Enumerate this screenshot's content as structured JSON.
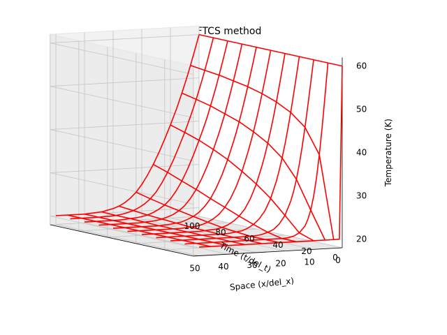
{
  "chart_data": {
    "type": "wireframe",
    "title": "FTCS method",
    "xlabel": "Space (x/del_x)",
    "ylabel": "Time (t/del_t)",
    "zlabel": "Temperature (K)",
    "x_ticks": [
      "0",
      "10",
      "20",
      "30",
      "40",
      "50"
    ],
    "y_ticks": [
      "0",
      "20",
      "40",
      "60",
      "80",
      "100"
    ],
    "z_ticks": [
      "20",
      "30",
      "40",
      "50",
      "60"
    ],
    "xlim": [
      0,
      52
    ],
    "ylim": [
      0,
      100
    ],
    "zlim": [
      18,
      62
    ],
    "grid": true,
    "line_color": "#ff0000",
    "x_points": [
      0,
      1,
      2,
      3,
      4,
      5,
      6,
      7,
      8,
      10,
      12,
      14,
      16,
      18,
      20,
      22,
      24,
      26,
      28,
      30,
      32,
      34,
      36,
      38,
      40,
      42,
      44,
      46,
      48,
      50
    ],
    "time_rows": [
      0,
      10,
      20,
      30,
      40,
      50,
      60,
      70,
      80,
      90,
      100
    ],
    "series": [
      {
        "time": 0,
        "temperature": [
          60,
          20,
          20,
          20,
          20,
          20,
          20,
          20,
          20,
          20,
          20,
          20,
          20,
          20,
          20,
          20,
          20,
          20,
          20,
          20,
          20,
          20,
          20,
          20,
          20,
          20,
          20,
          20,
          20,
          20
        ]
      },
      {
        "time": 10,
        "temperature": [
          60,
          52.5,
          45.3,
          38.9,
          33.5,
          29.3,
          26.2,
          24.1,
          22.6,
          21.1,
          20.4,
          20.1,
          20,
          20,
          20,
          20,
          20,
          20,
          20,
          20,
          20,
          20,
          20,
          20,
          20,
          20,
          20,
          20,
          20,
          20
        ]
      },
      {
        "time": 20,
        "temperature": [
          60,
          54.7,
          49.5,
          44.5,
          40.0,
          36.0,
          32.6,
          29.8,
          27.6,
          24.4,
          22.5,
          21.3,
          20.7,
          20.3,
          20.1,
          20,
          20,
          20,
          20,
          20,
          20,
          20,
          20,
          20,
          20,
          20,
          20,
          20,
          20,
          20
        ]
      },
      {
        "time": 30,
        "temperature": [
          60,
          55.6,
          51.3,
          47.2,
          43.4,
          39.9,
          36.8,
          34.0,
          31.5,
          27.6,
          24.8,
          23.0,
          21.8,
          21.0,
          20.5,
          20.3,
          20.1,
          20,
          20,
          20,
          20,
          20,
          20,
          20,
          20,
          20,
          20,
          20,
          20,
          20
        ]
      },
      {
        "time": 40,
        "temperature": [
          60,
          56.2,
          52.5,
          48.9,
          45.5,
          42.4,
          39.5,
          36.8,
          34.4,
          30.2,
          27.0,
          24.6,
          23.0,
          21.9,
          21.1,
          20.6,
          20.3,
          20.2,
          20.1,
          20,
          20,
          20,
          20,
          20,
          20,
          20,
          20,
          20,
          20,
          20
        ]
      },
      {
        "time": 50,
        "temperature": [
          60,
          56.6,
          53.3,
          50.1,
          47.0,
          44.1,
          41.4,
          38.9,
          36.6,
          32.4,
          29.0,
          26.3,
          24.3,
          22.8,
          21.8,
          21.1,
          20.6,
          20.3,
          20.2,
          20.1,
          20,
          20,
          20,
          20,
          20,
          20,
          20,
          20,
          20,
          20
        ]
      },
      {
        "time": 60,
        "temperature": [
          60,
          56.9,
          53.9,
          51.0,
          48.2,
          45.5,
          43.0,
          40.6,
          38.4,
          34.4,
          30.9,
          28.0,
          25.6,
          23.9,
          22.6,
          21.7,
          21.1,
          20.6,
          20.4,
          20.2,
          20.1,
          20,
          20,
          20,
          20,
          20,
          20,
          20,
          20,
          20
        ]
      },
      {
        "time": 70,
        "temperature": [
          60,
          57.1,
          54.3,
          51.6,
          49.0,
          46.5,
          44.1,
          41.9,
          39.8,
          36.0,
          32.5,
          29.5,
          27.0,
          25.0,
          23.4,
          22.3,
          21.5,
          21.0,
          20.6,
          20.3,
          20.2,
          20.1,
          20,
          20,
          20,
          20,
          20,
          20,
          20,
          20
        ]
      },
      {
        "time": 80,
        "temperature": [
          60,
          57.3,
          54.7,
          52.2,
          49.7,
          47.4,
          45.2,
          43.0,
          41.0,
          37.4,
          34.0,
          30.9,
          28.2,
          26.0,
          24.2,
          22.9,
          22.0,
          21.3,
          20.8,
          20.5,
          20.3,
          20.2,
          20.1,
          20,
          20,
          20,
          20,
          20,
          20,
          20
        ]
      },
      {
        "time": 90,
        "temperature": [
          60,
          57.5,
          55.0,
          52.6,
          50.3,
          48.1,
          46.0,
          44.0,
          42.1,
          38.5,
          35.3,
          32.2,
          29.5,
          27.1,
          25.1,
          23.6,
          22.5,
          21.7,
          21.1,
          20.7,
          20.4,
          20.2,
          20.1,
          20.1,
          20,
          20,
          20,
          20,
          20,
          20
        ]
      },
      {
        "time": 100,
        "temperature": [
          60,
          57.6,
          55.3,
          53.0,
          50.8,
          48.7,
          46.7,
          44.8,
          42.9,
          39.5,
          36.3,
          33.3,
          30.6,
          28.2,
          26.1,
          24.4,
          23.1,
          22.1,
          21.4,
          20.9,
          20.6,
          20.3,
          20.2,
          20.1,
          20,
          20,
          20,
          20,
          20,
          20
        ]
      }
    ]
  }
}
